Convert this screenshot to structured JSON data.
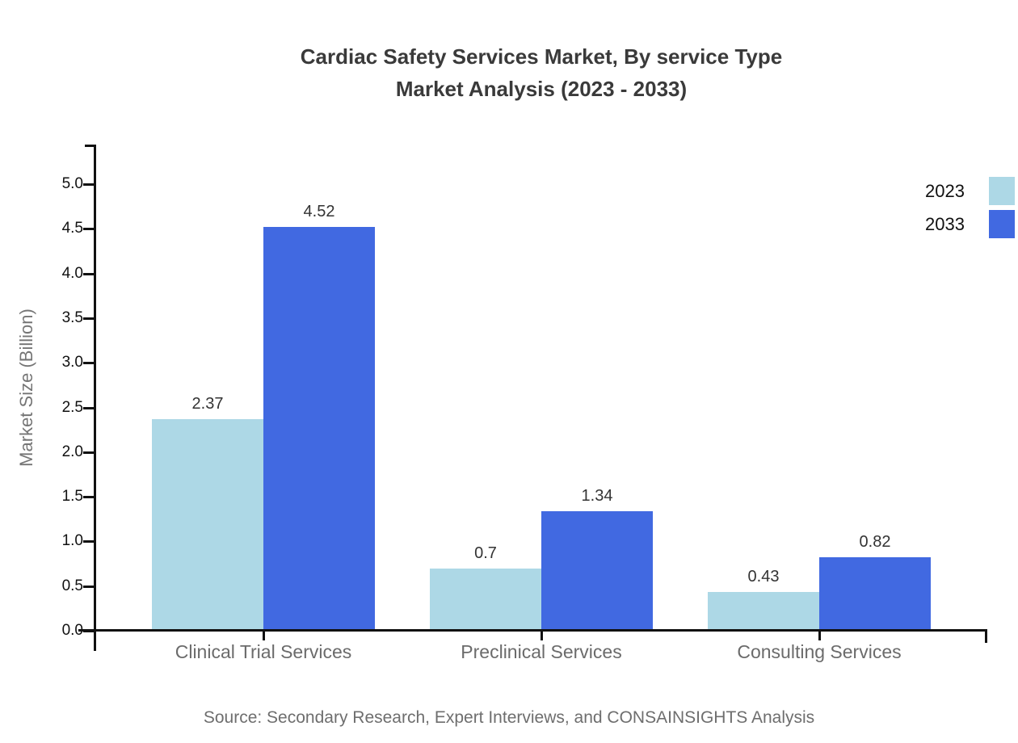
{
  "title": {
    "line1": "Cardiac Safety Services Market, By service Type",
    "line2": "Market Analysis (2023 - 2033)"
  },
  "source": {
    "text": "Source: Secondary Research, Expert Interviews, and CONSAINSIGHTS Analysis"
  },
  "chart_data": {
    "type": "bar",
    "title": "Cardiac Safety Services Market, By service Type Market Analysis (2023 - 2033)",
    "categories": [
      "Clinical Trial Services",
      "Preclinical Services",
      "Consulting Services"
    ],
    "series": [
      {
        "name": "2023",
        "color": "#ADD8E6",
        "values": [
          2.37,
          0.7,
          0.43
        ]
      },
      {
        "name": "2033",
        "color": "#4169E1",
        "values": [
          4.52,
          1.34,
          0.82
        ]
      }
    ],
    "xlabel": "",
    "ylabel": "Market Size (Billion)",
    "ylim": [
      0,
      5
    ],
    "ytick_step": 0.5,
    "yticks": [
      "0.0",
      "0.5",
      "1.0",
      "1.5",
      "2.0",
      "2.5",
      "3.0",
      "3.5",
      "4.0",
      "4.5",
      "5.0"
    ],
    "grid": false,
    "legend_position": "top-right",
    "bar_value_labels": true
  },
  "colors": {
    "axis": "#111111",
    "title_text": "#3a3a3a",
    "category_text": "#6b6b6b",
    "value_text": "#333333",
    "source_text": "#6e6e6e"
  }
}
